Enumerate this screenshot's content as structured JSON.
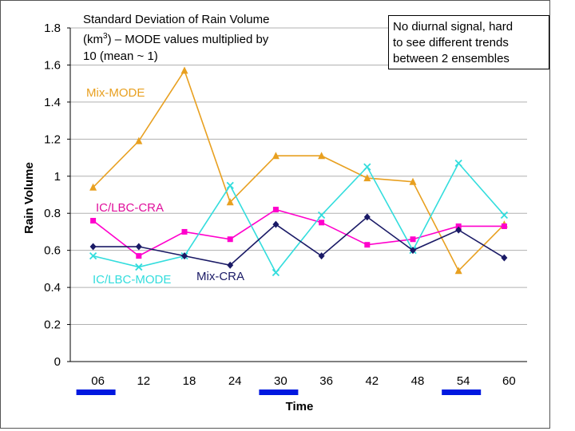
{
  "chart_data": {
    "type": "line",
    "title_line1": "Standard Deviation of Rain Volume",
    "title_line2_pre": "(km",
    "title_line2_sup": "3",
    "title_line2_post": ") – MODE values multiplied by",
    "title_line3": "10  (mean ~ 1)",
    "annotation_lines": [
      "No diurnal signal, hard",
      "to see different trends",
      "between 2 ensembles"
    ],
    "xlabel": "Time",
    "ylabel": "Rain Volume",
    "categories": [
      "06",
      "12",
      "18",
      "24",
      "30",
      "36",
      "42",
      "48",
      "54",
      "60"
    ],
    "ylim": [
      0,
      1.8
    ],
    "yticks": [
      "0",
      "0.2",
      "0.4",
      "0.6",
      "0.8",
      "1",
      "1.2",
      "1.4",
      "1.6",
      "1.8"
    ],
    "grid": true,
    "highlighted_times": [
      "06",
      "30",
      "54"
    ],
    "highlight_color": "#0018e0",
    "series": [
      {
        "name": "Mix-MODE",
        "color": "#e8a020",
        "marker": "triangle",
        "values": [
          0.94,
          1.19,
          1.57,
          0.86,
          1.11,
          1.11,
          0.99,
          0.97,
          0.49,
          0.74
        ]
      },
      {
        "name": "IC/LBC-CRA",
        "color": "#ff00cc",
        "marker": "square",
        "values": [
          0.76,
          0.57,
          0.7,
          0.66,
          0.82,
          0.75,
          0.63,
          0.66,
          0.73,
          0.73
        ]
      },
      {
        "name": "IC/LBC-MODE",
        "color": "#33dddd",
        "marker": "x",
        "values": [
          0.57,
          0.51,
          0.57,
          0.95,
          0.48,
          0.79,
          1.05,
          0.6,
          1.07,
          0.79
        ]
      },
      {
        "name": "Mix-CRA",
        "color": "#1a1a66",
        "marker": "diamond",
        "values": [
          0.62,
          0.62,
          0.57,
          0.52,
          0.74,
          0.57,
          0.78,
          0.6,
          0.71,
          0.56
        ]
      }
    ]
  }
}
